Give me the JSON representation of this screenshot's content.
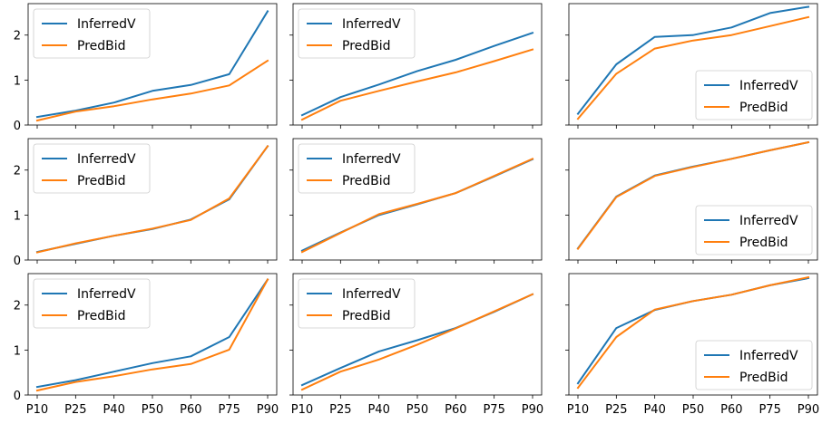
{
  "chart_data": {
    "type": "line",
    "layout": {
      "rows": 3,
      "cols": 3,
      "shared_x": true,
      "shared_y": true
    },
    "categories": [
      "P10",
      "P25",
      "P40",
      "P50",
      "P60",
      "P75",
      "P90"
    ],
    "ylim": [
      0,
      2.7
    ],
    "yticks": [
      "0",
      "1",
      "2"
    ],
    "series_style": [
      {
        "name": "InferredV",
        "color": "#1f77b4"
      },
      {
        "name": "PredBid",
        "color": "#ff7f0e"
      }
    ],
    "panels": [
      {
        "legend": "upper-left",
        "series": [
          {
            "name": "InferredV",
            "values": [
              0.18,
              0.32,
              0.5,
              0.76,
              0.89,
              1.13,
              2.53
            ]
          },
          {
            "name": "PredBid",
            "values": [
              0.1,
              0.3,
              0.42,
              0.57,
              0.7,
              0.88,
              1.43
            ]
          }
        ]
      },
      {
        "legend": "upper-left",
        "series": [
          {
            "name": "InferredV",
            "values": [
              0.22,
              0.62,
              0.9,
              1.2,
              1.45,
              1.76,
              2.05
            ]
          },
          {
            "name": "PredBid",
            "values": [
              0.12,
              0.54,
              0.76,
              0.97,
              1.17,
              1.42,
              1.68
            ]
          }
        ]
      },
      {
        "legend": "lower-right",
        "series": [
          {
            "name": "InferredV",
            "values": [
              0.25,
              1.35,
              1.96,
              2.0,
              2.17,
              2.49,
              2.63
            ]
          },
          {
            "name": "PredBid",
            "values": [
              0.14,
              1.14,
              1.7,
              1.88,
              2.0,
              2.2,
              2.4
            ]
          }
        ]
      },
      {
        "legend": "upper-left",
        "series": [
          {
            "name": "InferredV",
            "values": [
              0.18,
              0.36,
              0.54,
              0.69,
              0.9,
              1.35,
              2.53
            ]
          },
          {
            "name": "PredBid",
            "values": [
              0.17,
              0.37,
              0.54,
              0.7,
              0.89,
              1.37,
              2.53
            ]
          }
        ]
      },
      {
        "legend": "upper-left",
        "series": [
          {
            "name": "InferredV",
            "values": [
              0.21,
              0.61,
              1.0,
              1.24,
              1.49,
              1.86,
              2.24
            ]
          },
          {
            "name": "PredBid",
            "values": [
              0.18,
              0.6,
              1.02,
              1.25,
              1.49,
              1.87,
              2.25
            ]
          }
        ]
      },
      {
        "legend": "lower-right",
        "series": [
          {
            "name": "InferredV",
            "values": [
              0.26,
              1.41,
              1.88,
              2.08,
              2.25,
              2.44,
              2.62
            ]
          },
          {
            "name": "PredBid",
            "values": [
              0.25,
              1.4,
              1.87,
              2.07,
              2.25,
              2.44,
              2.62
            ]
          }
        ]
      },
      {
        "legend": "upper-left",
        "series": [
          {
            "name": "InferredV",
            "values": [
              0.18,
              0.33,
              0.52,
              0.71,
              0.86,
              1.29,
              2.57
            ]
          },
          {
            "name": "PredBid",
            "values": [
              0.1,
              0.29,
              0.42,
              0.57,
              0.69,
              1.01,
              2.57
            ]
          }
        ]
      },
      {
        "legend": "upper-left",
        "series": [
          {
            "name": "InferredV",
            "values": [
              0.22,
              0.6,
              0.97,
              1.22,
              1.49,
              1.85,
              2.24
            ]
          },
          {
            "name": "PredBid",
            "values": [
              0.12,
              0.52,
              0.79,
              1.12,
              1.48,
              1.86,
              2.24
            ]
          }
        ]
      },
      {
        "legend": "lower-right",
        "series": [
          {
            "name": "InferredV",
            "values": [
              0.26,
              1.49,
              1.89,
              2.09,
              2.23,
              2.44,
              2.6
            ]
          },
          {
            "name": "PredBid",
            "values": [
              0.16,
              1.29,
              1.9,
              2.09,
              2.23,
              2.44,
              2.62
            ]
          }
        ]
      }
    ]
  }
}
